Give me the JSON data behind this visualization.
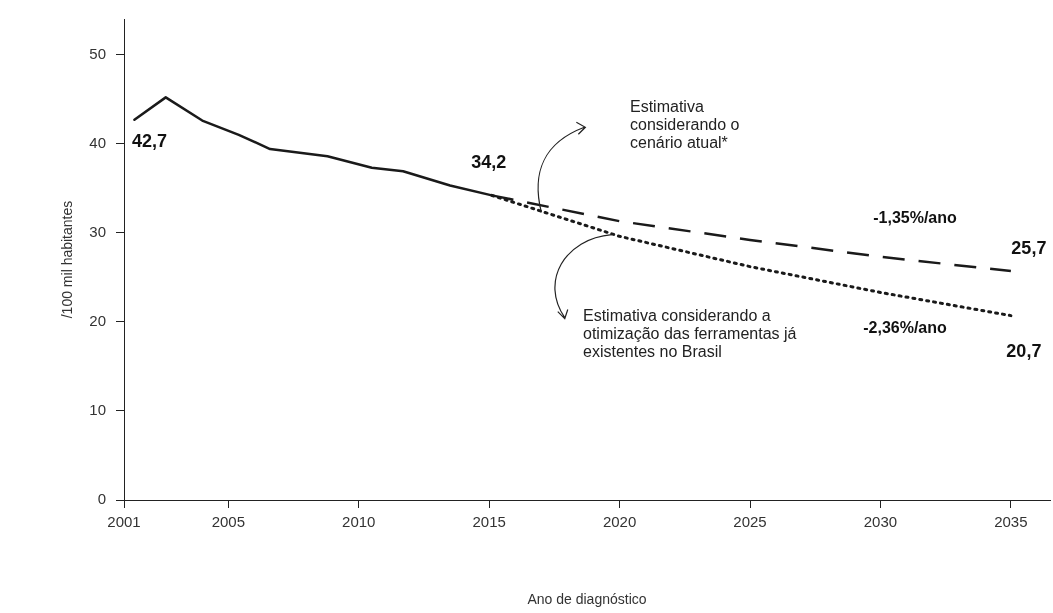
{
  "chart_data": {
    "type": "line",
    "xlabel": "Ano de diagnóstico",
    "ylabel": "/100 mil habitantes",
    "xlim": [
      2001,
      2036.5
    ],
    "xticks": [
      2001,
      2005,
      2010,
      2015,
      2020,
      2025,
      2030,
      2035
    ],
    "ylim": [
      0,
      54
    ],
    "yticks": [
      0,
      10,
      20,
      30,
      40,
      50
    ],
    "grid": false,
    "legend": false,
    "marker": "none",
    "series": [
      {
        "color": "#1a1a1a",
        "line_style": "solid",
        "x": [
          2001.4,
          2002.6,
          2004.0,
          2005.4,
          2006.6,
          2008.8,
          2010.5,
          2011.7,
          2013.5,
          2015.1
        ],
        "values": [
          42.7,
          45.2,
          42.6,
          41.0,
          39.4,
          38.6,
          37.3,
          36.9,
          35.3,
          34.2
        ]
      },
      {
        "color": "#1a1a1a",
        "line_style": "dashed",
        "x": [
          2015.1,
          2020,
          2025,
          2030,
          2035
        ],
        "values": [
          34.2,
          31.3,
          29.2,
          27.3,
          25.7
        ]
      },
      {
        "color": "#1a1a1a",
        "line_style": "dotted",
        "x": [
          2015.1,
          2020,
          2025,
          2030,
          2035
        ],
        "values": [
          34.2,
          29.6,
          26.2,
          23.3,
          20.7
        ]
      }
    ],
    "annotations": [
      {
        "text": "42,7",
        "x": 2001.4,
        "y": 42.7
      },
      {
        "text": "34,2",
        "x": 2015.1,
        "y": 34.2
      },
      {
        "text": "25,7",
        "x": 2035,
        "y": 25.7
      },
      {
        "text": "20,7",
        "x": 2035,
        "y": 20.7
      },
      "-1,35%/ano",
      "-2,36%/ano",
      "Estimativa considerando o cenário atual*",
      {
        "text": "Estimativa considerando a otimização das ferramentas já existentes no Brasil",
        "x": 2019.7,
        "y": 29.8
      }
    ]
  }
}
